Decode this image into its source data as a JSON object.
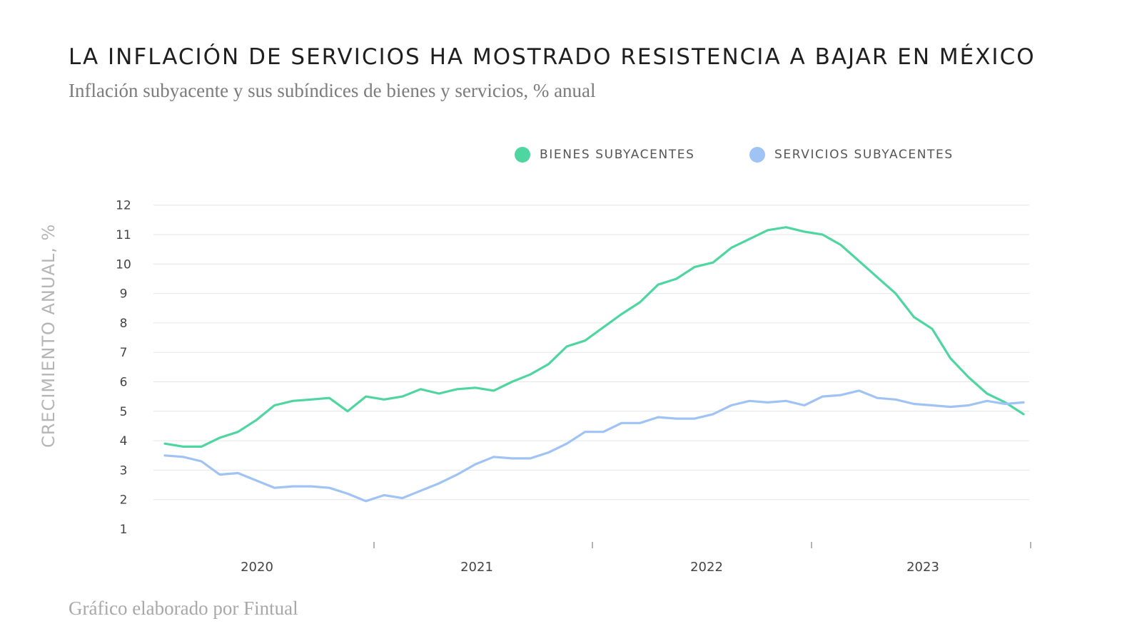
{
  "chart_data": {
    "type": "line",
    "title": "LA INFLACIÓN DE SERVICIOS HA MOSTRADO RESISTENCIA A BAJAR EN MÉXICO",
    "subtitle": "Inflación subyacente y sus subíndices de bienes y servicios, % anual",
    "ylabel": "CRECIMIENTO ANUAL, %",
    "xlabel": "",
    "ylim": [
      1,
      12
    ],
    "yticks": [
      1,
      2,
      3,
      4,
      5,
      6,
      7,
      8,
      9,
      10,
      11,
      12
    ],
    "xtick_labels": [
      "2020",
      "2021",
      "2022",
      "2023"
    ],
    "legend_position": "top-right",
    "grid": true,
    "colors": {
      "bienes": "#4fd6a0",
      "servicios": "#a0c3f5",
      "grid": "#e6e6e6"
    },
    "series": [
      {
        "name": "BIENES SUBYACENTES",
        "values": [
          3.9,
          3.8,
          3.8,
          4.1,
          4.3,
          4.7,
          5.2,
          5.35,
          5.4,
          5.45,
          5.0,
          5.5,
          5.4,
          5.5,
          5.75,
          5.6,
          5.75,
          5.8,
          5.7,
          6.0,
          6.25,
          6.6,
          7.2,
          7.4,
          7.85,
          8.3,
          8.7,
          9.3,
          9.5,
          9.9,
          10.05,
          10.55,
          10.85,
          11.15,
          11.25,
          11.1,
          11.0,
          10.65,
          10.1,
          9.55,
          9.0,
          8.2,
          7.8,
          6.8,
          6.15,
          5.6,
          5.3,
          4.9
        ]
      },
      {
        "name": "SERVICIOS SUBYACENTES",
        "values": [
          3.5,
          3.45,
          3.3,
          2.85,
          2.9,
          2.65,
          2.4,
          2.45,
          2.45,
          2.4,
          2.2,
          1.95,
          2.15,
          2.05,
          2.3,
          2.55,
          2.85,
          3.2,
          3.45,
          3.4,
          3.4,
          3.6,
          3.9,
          4.3,
          4.3,
          4.6,
          4.6,
          4.8,
          4.75,
          4.75,
          4.9,
          5.2,
          5.35,
          5.3,
          5.35,
          5.2,
          5.5,
          5.55,
          5.7,
          5.45,
          5.4,
          5.25,
          5.2,
          5.15,
          5.2,
          5.35,
          5.25,
          5.3
        ]
      }
    ]
  }
}
